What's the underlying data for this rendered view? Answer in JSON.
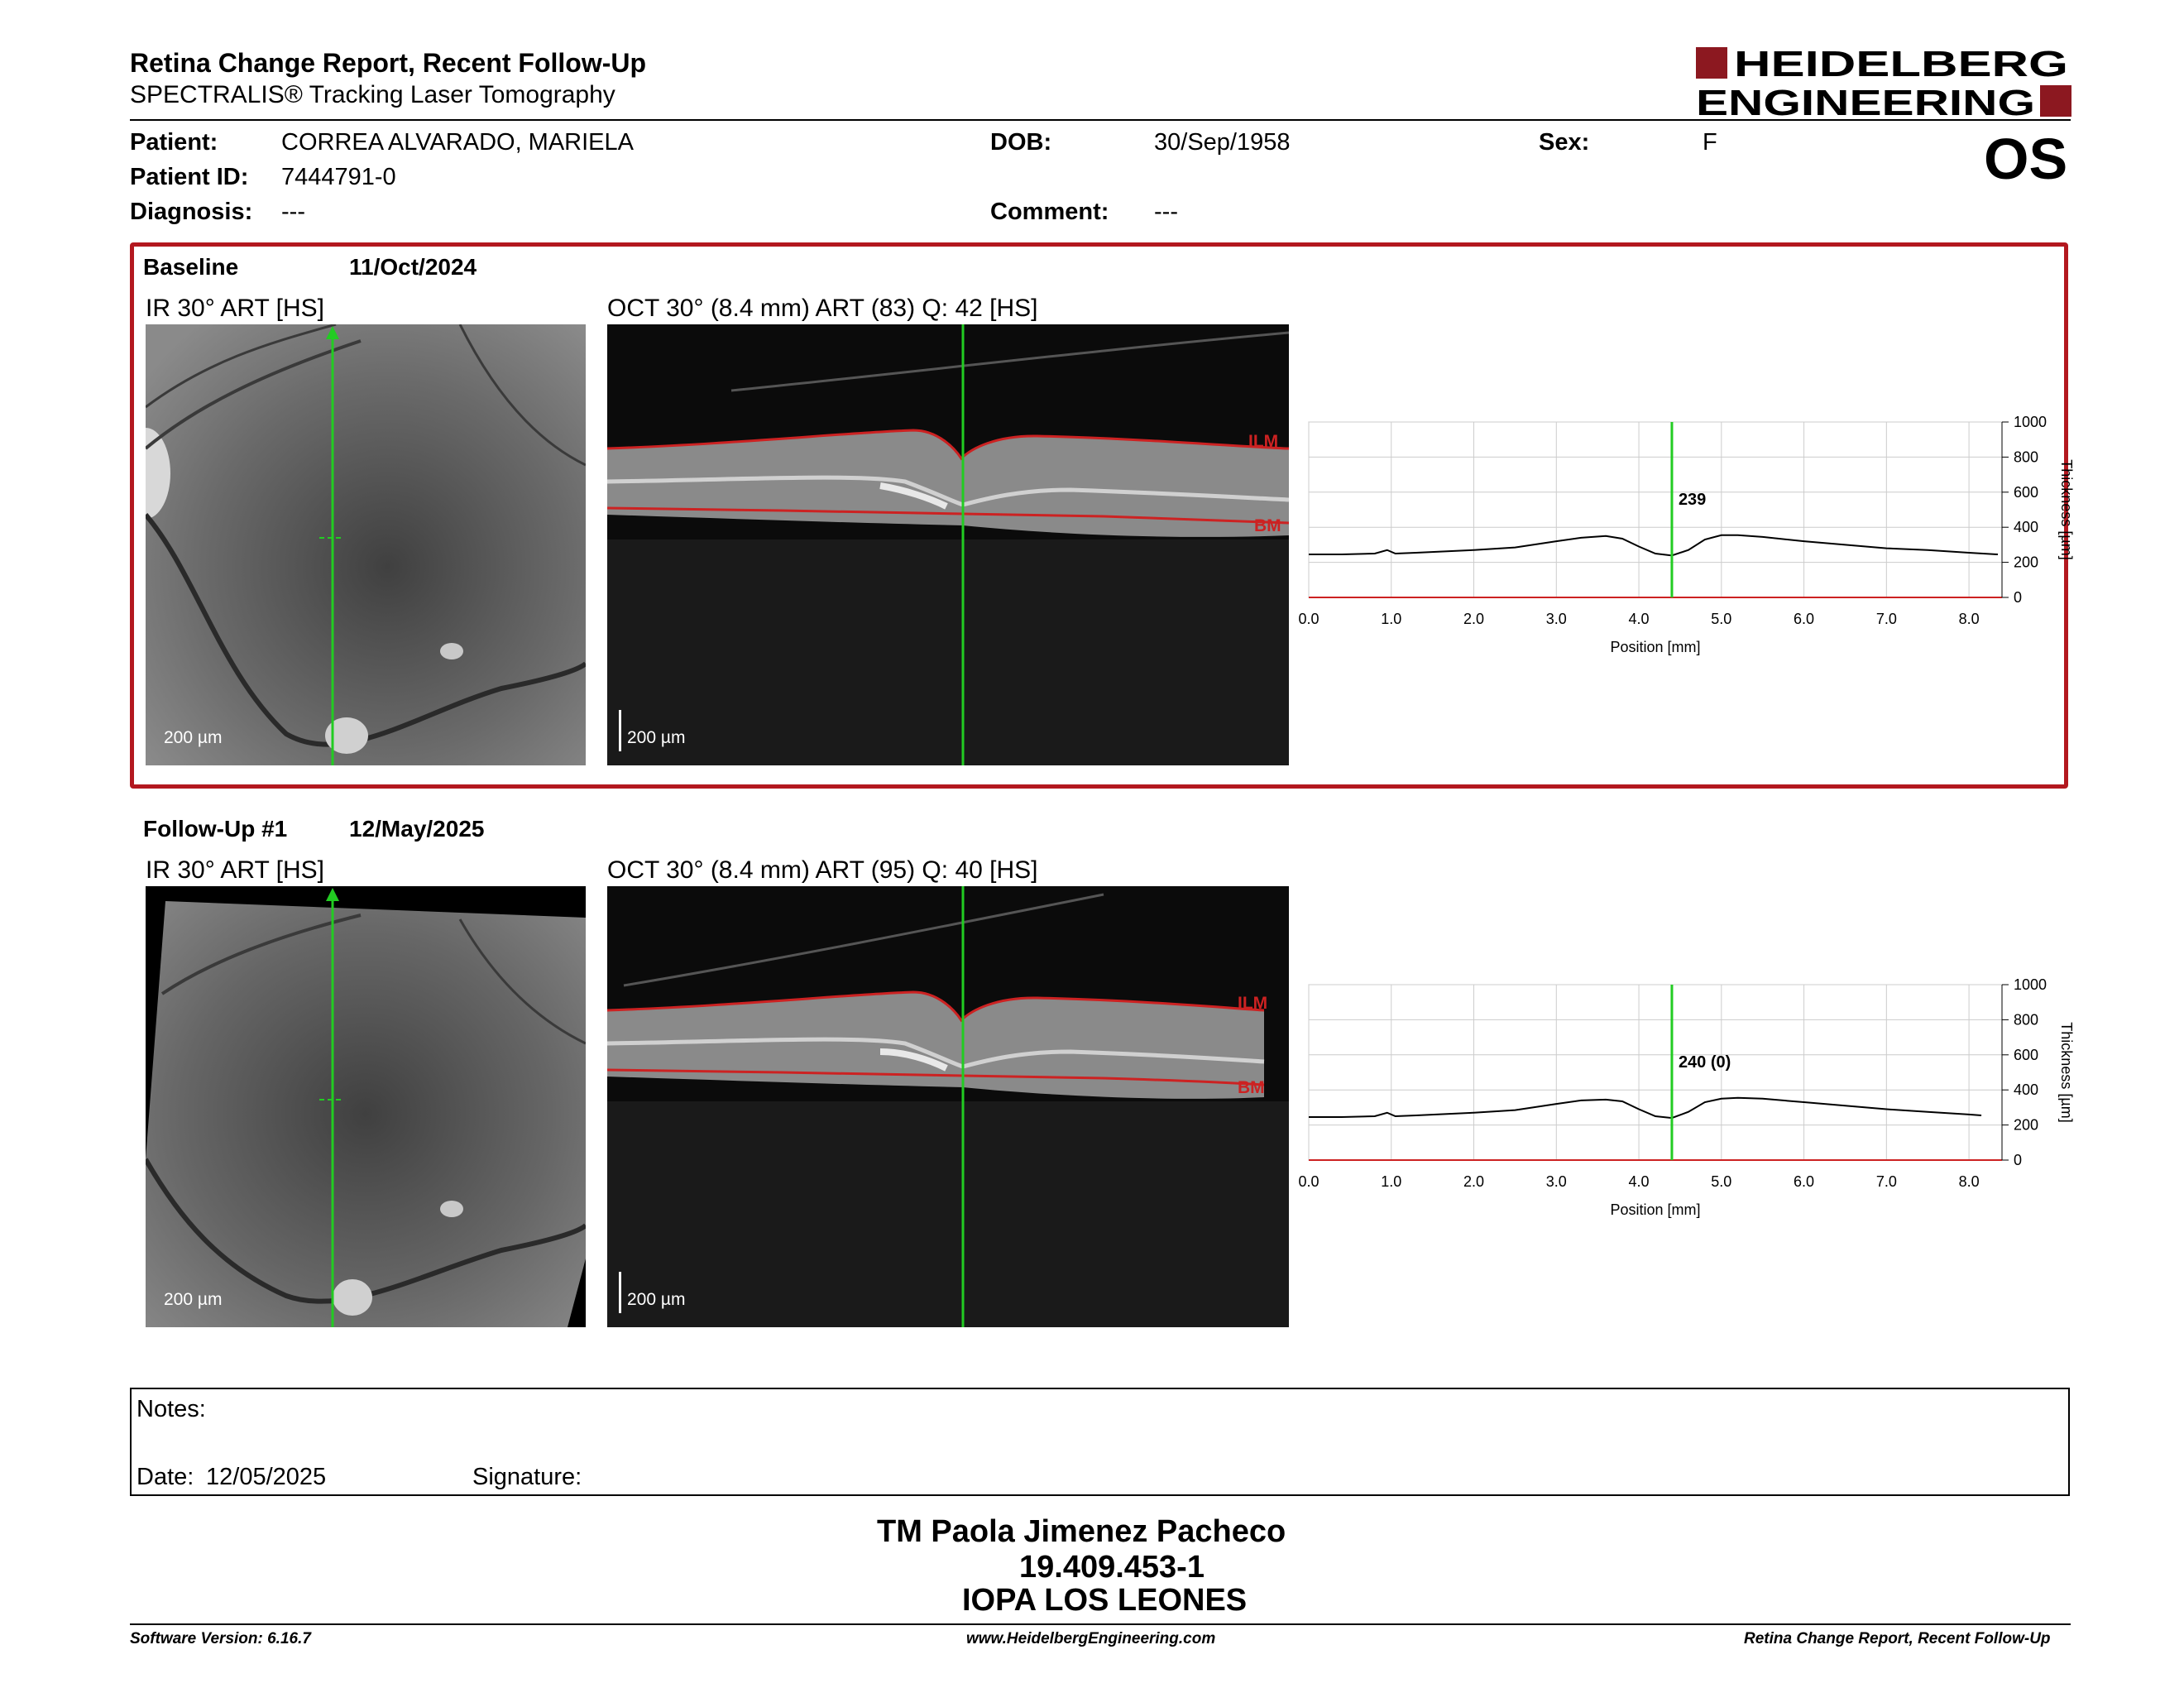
{
  "report": {
    "title": "Retina Change Report, Recent Follow-Up",
    "subtitle": "SPECTRALIS® Tracking Laser Tomography",
    "eye": "OS",
    "logo_line1": "HEIDELBERG",
    "logo_line2": "ENGINEERING",
    "brand_color": "#8c1820"
  },
  "patient": {
    "patient_label": "Patient:",
    "patient_name": "CORREA ALVARADO, MARIELA",
    "id_label": "Patient ID:",
    "patient_id": "7444791-0",
    "diagnosis_label": "Diagnosis:",
    "diagnosis": "---",
    "dob_label": "DOB:",
    "dob": "30/Sep/1958",
    "comment_label": "Comment:",
    "comment": "---",
    "sex_label": "Sex:",
    "sex": "F"
  },
  "baseline": {
    "label": "Baseline",
    "date": "11/Oct/2024",
    "ir_label": "IR 30° ART [HS]",
    "oct_label": "OCT 30° (8.4 mm) ART (83) Q: 42 [HS]",
    "scale": "200 µm",
    "ilm": "ILM",
    "bm": "BM"
  },
  "followup": {
    "label": "Follow-Up #1",
    "date": "12/May/2025",
    "ir_label": "IR 30° ART [HS]",
    "oct_label": "OCT 30° (8.4 mm) ART (95) Q: 40 [HS]",
    "scale": "200 µm",
    "ilm": "ILM",
    "bm": "BM"
  },
  "chart_data": [
    {
      "type": "line",
      "ylabel": "Thickness [µm]",
      "xlabel": "Position [mm]",
      "xticks": [
        "0.0",
        "1.0",
        "2.0",
        "3.0",
        "4.0",
        "5.0",
        "6.0",
        "7.0",
        "8.0"
      ],
      "yticks": [
        "0",
        "200",
        "400",
        "600",
        "800",
        "1000"
      ],
      "xlim": [
        0,
        8.4
      ],
      "ylim": [
        0,
        1000
      ],
      "marker_x": 4.4,
      "marker_label": "239",
      "grid": true,
      "x": [
        0,
        0.4,
        0.8,
        0.95,
        1.05,
        1.3,
        2.0,
        2.5,
        3.0,
        3.3,
        3.6,
        3.8,
        4.0,
        4.2,
        4.4,
        4.6,
        4.8,
        5.0,
        5.2,
        5.5,
        6.0,
        6.5,
        7.0,
        7.5,
        8.0,
        8.35
      ],
      "y": [
        245,
        245,
        250,
        270,
        250,
        255,
        270,
        285,
        320,
        340,
        350,
        335,
        290,
        250,
        239,
        270,
        330,
        355,
        355,
        345,
        320,
        300,
        280,
        270,
        255,
        245
      ]
    },
    {
      "type": "line",
      "ylabel": "Thickness [µm]",
      "xlabel": "Position [mm]",
      "xticks": [
        "0.0",
        "1.0",
        "2.0",
        "3.0",
        "4.0",
        "5.0",
        "6.0",
        "7.0",
        "8.0"
      ],
      "yticks": [
        "0",
        "200",
        "400",
        "600",
        "800",
        "1000"
      ],
      "xlim": [
        0,
        8.4
      ],
      "ylim": [
        0,
        1000
      ],
      "marker_x": 4.4,
      "marker_label": "240 (0)",
      "grid": true,
      "x": [
        0,
        0.4,
        0.8,
        0.95,
        1.05,
        1.3,
        2.0,
        2.5,
        3.0,
        3.3,
        3.6,
        3.8,
        4.0,
        4.2,
        4.4,
        4.6,
        4.8,
        5.0,
        5.2,
        5.5,
        6.0,
        6.5,
        7.0,
        7.5,
        8.0,
        8.15
      ],
      "y": [
        245,
        245,
        250,
        270,
        250,
        255,
        270,
        285,
        320,
        340,
        345,
        335,
        290,
        250,
        240,
        275,
        330,
        350,
        355,
        350,
        330,
        310,
        290,
        275,
        260,
        255
      ]
    }
  ],
  "notes": {
    "notes_label": "Notes:",
    "date_label": "Date:",
    "date": "12/05/2025",
    "signature_label": "Signature:"
  },
  "signature": {
    "name": "TM Paola Jimenez Pacheco",
    "id": "19.409.453-1",
    "org": "IOPA LOS LEONES"
  },
  "footer": {
    "software": "Software Version: 6.16.7",
    "website": "www.HeidelbergEngineering.com",
    "report_name": "Retina Change Report, Recent Follow-Up"
  }
}
